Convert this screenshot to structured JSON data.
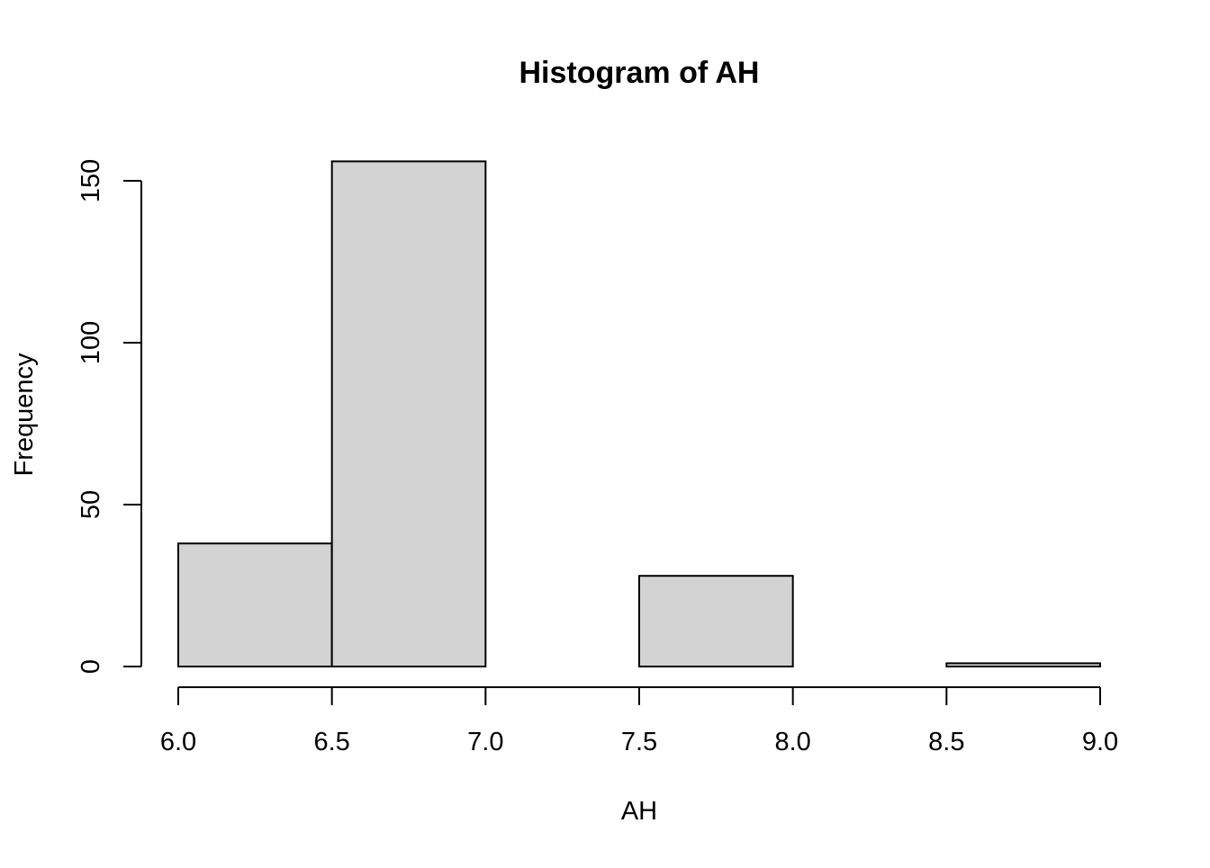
{
  "chart_data": {
    "type": "bar",
    "title": "Histogram of AH",
    "xlabel": "AH",
    "ylabel": "Frequency",
    "bins": [
      {
        "start": 6.0,
        "end": 6.5,
        "count": 38
      },
      {
        "start": 6.5,
        "end": 7.0,
        "count": 156
      },
      {
        "start": 7.0,
        "end": 7.5,
        "count": 0
      },
      {
        "start": 7.5,
        "end": 8.0,
        "count": 28
      },
      {
        "start": 8.0,
        "end": 8.5,
        "count": 0
      },
      {
        "start": 8.5,
        "end": 9.0,
        "count": 1
      }
    ],
    "xlim": [
      6.0,
      9.0
    ],
    "ylim": [
      0,
      156
    ],
    "x_ticks": [
      "6.0",
      "6.5",
      "7.0",
      "7.5",
      "8.0",
      "8.5",
      "9.0"
    ],
    "y_ticks": [
      "0",
      "50",
      "100",
      "150"
    ],
    "bar_color": "#d3d3d3",
    "border_color": "#000000",
    "grid": false
  }
}
